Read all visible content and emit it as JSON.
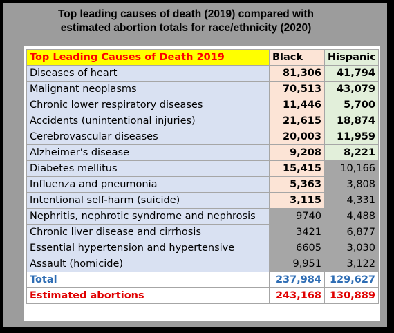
{
  "title": {
    "line1": "Top leading causes of death (2019) compared with",
    "line2": "estimated abortion totals for race/ethnicity (2020)"
  },
  "colors": {
    "header_cause_bg": "#ffff00",
    "header_cause_text": "#ff0000",
    "header_black_bg": "#fce4d6",
    "header_hispanic_bg": "#e2efda",
    "label_bg": "#d9e1f2",
    "black_cell_bg": "#fce4d6",
    "hispanic_cell_bg": "#e2efda",
    "gray_cell_bg": "#a6a6a6",
    "total_text": "#2e6db4",
    "abortion_text": "#e00000"
  },
  "table": {
    "header": {
      "cause": "Top Leading Causes of Death 2019",
      "black": "Black",
      "hispanic": "Hispanic"
    },
    "rows": [
      {
        "cause": "Diseases of heart",
        "black": "81,306",
        "hispanic": "41,794",
        "black_style": "highlight",
        "hispanic_style": "highlight"
      },
      {
        "cause": "Malignant neoplasms",
        "black": "70,513",
        "hispanic": "43,079",
        "black_style": "highlight",
        "hispanic_style": "highlight"
      },
      {
        "cause": "Chronic lower respiratory diseases",
        "black": "11,446",
        "hispanic": "5,700",
        "black_style": "highlight",
        "hispanic_style": "highlight"
      },
      {
        "cause": "Accidents (unintentional injuries)",
        "black": "21,615",
        "hispanic": "18,874",
        "black_style": "highlight",
        "hispanic_style": "highlight"
      },
      {
        "cause": "Cerebrovascular diseases",
        "black": "20,003",
        "hispanic": "11,959",
        "black_style": "highlight",
        "hispanic_style": "highlight"
      },
      {
        "cause": "Alzheimer's disease",
        "black": "9,208",
        "hispanic": "8,221",
        "black_style": "highlight",
        "hispanic_style": "highlight"
      },
      {
        "cause": "Diabetes mellitus",
        "black": "15,415",
        "hispanic": "10,166",
        "black_style": "highlight",
        "hispanic_style": "gray"
      },
      {
        "cause": "Influenza and pneumonia",
        "black": "5,363",
        "hispanic": "3,808",
        "black_style": "highlight",
        "hispanic_style": "gray"
      },
      {
        "cause": "Intentional self-harm (suicide)",
        "black": "3,115",
        "hispanic": "4,331",
        "black_style": "highlight",
        "hispanic_style": "gray"
      },
      {
        "cause": "Nephritis, nephrotic syndrome and nephrosis",
        "black": "9740",
        "hispanic": "4,488",
        "black_style": "gray",
        "hispanic_style": "gray"
      },
      {
        "cause": "Chronic liver disease and cirrhosis",
        "black": "3421",
        "hispanic": "6,877",
        "black_style": "gray",
        "hispanic_style": "gray"
      },
      {
        "cause": "Essential hypertension and hypertensive",
        "black": "6605",
        "hispanic": "3,030",
        "black_style": "gray",
        "hispanic_style": "gray"
      },
      {
        "cause": "Assault (homicide)",
        "black": "9,951",
        "hispanic": "3,122",
        "black_style": "gray",
        "hispanic_style": "gray"
      }
    ],
    "total": {
      "label": "Total",
      "black": "237,984",
      "hispanic": "129,627"
    },
    "abortions": {
      "label": "Estimated abortions",
      "black": "243,168",
      "hispanic": "130,889"
    }
  }
}
